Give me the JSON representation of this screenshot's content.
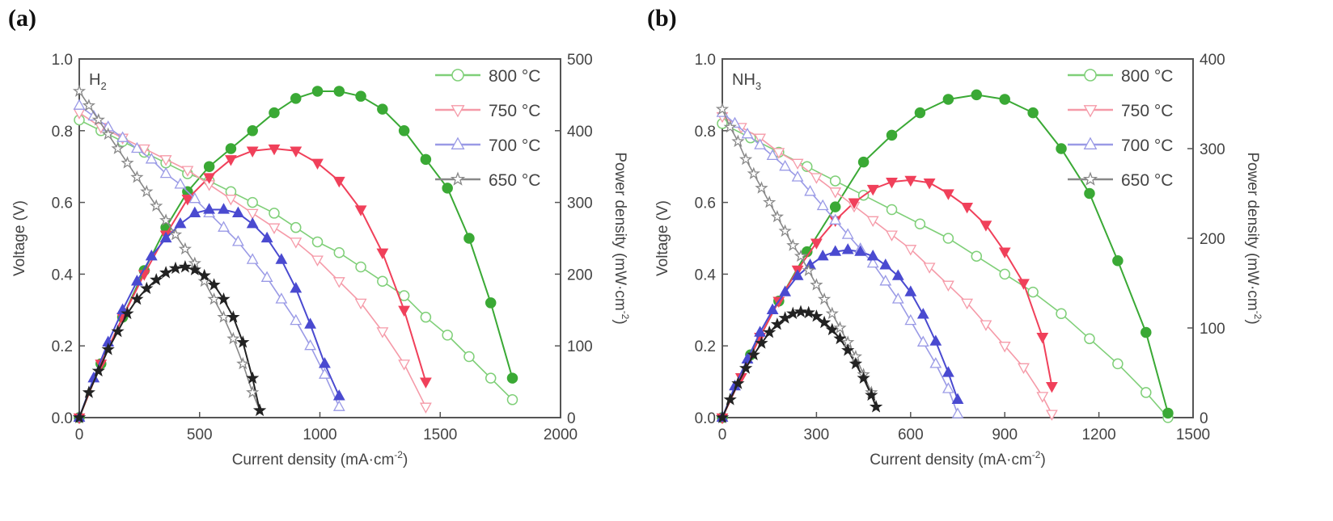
{
  "colors": {
    "800": "#3aa935",
    "750": "#f0405a",
    "700": "#4a4ad0",
    "650": "#222222",
    "800_light": "#7fcf78",
    "750_light": "#f59aa8",
    "700_light": "#9a9ae6",
    "650_light": "#888888"
  },
  "chart_data": [
    {
      "panel_label": "(a)",
      "type": "line",
      "gas_label": "H",
      "gas_sub": "2",
      "xlabel": "Current density (mA·cm",
      "xlabel_sup": "-2",
      "xlabel_end": ")",
      "ylabel": "Voltage (V)",
      "y2label": "Power density (mW·cm",
      "y2label_sup": "-2",
      "y2label_end": ")",
      "xlim": [
        0,
        2000
      ],
      "ylim": [
        0,
        1.0
      ],
      "y2lim": [
        0,
        500
      ],
      "xticks": [
        "0",
        "500",
        "1000",
        "1500",
        "2000"
      ],
      "yticks": [
        "0.0",
        "0.2",
        "0.4",
        "0.6",
        "0.8",
        "1.0"
      ],
      "y2ticks": [
        "0",
        "100",
        "200",
        "300",
        "400",
        "500"
      ],
      "legend_position": "top-right",
      "series": [
        {
          "name": "800 °C",
          "key": "800",
          "marker": "circle",
          "x": [
            0,
            90,
            180,
            270,
            360,
            450,
            540,
            630,
            720,
            810,
            900,
            990,
            1080,
            1170,
            1260,
            1350,
            1440,
            1530,
            1620,
            1710,
            1800
          ],
          "voltage": [
            0.83,
            0.8,
            0.77,
            0.74,
            0.71,
            0.68,
            0.66,
            0.63,
            0.6,
            0.57,
            0.53,
            0.49,
            0.46,
            0.42,
            0.38,
            0.34,
            0.28,
            0.23,
            0.17,
            0.11,
            0.05
          ],
          "power": [
            0,
            75,
            140,
            205,
            265,
            315,
            350,
            375,
            400,
            425,
            445,
            455,
            455,
            448,
            430,
            400,
            360,
            320,
            250,
            160,
            55
          ]
        },
        {
          "name": "750 °C",
          "key": "750",
          "marker": "triangle-down",
          "x": [
            0,
            90,
            180,
            270,
            360,
            450,
            540,
            630,
            720,
            810,
            900,
            990,
            1080,
            1170,
            1260,
            1350,
            1440
          ],
          "voltage": [
            0.85,
            0.81,
            0.78,
            0.75,
            0.72,
            0.69,
            0.65,
            0.61,
            0.57,
            0.53,
            0.49,
            0.44,
            0.38,
            0.32,
            0.24,
            0.15,
            0.03
          ],
          "power": [
            0,
            75,
            140,
            200,
            255,
            305,
            335,
            360,
            372,
            375,
            372,
            355,
            330,
            290,
            230,
            150,
            50
          ]
        },
        {
          "name": "700 °C",
          "key": "700",
          "marker": "triangle-up",
          "x": [
            0,
            60,
            120,
            180,
            240,
            300,
            360,
            420,
            480,
            540,
            600,
            660,
            720,
            780,
            840,
            900,
            960,
            1020,
            1080
          ],
          "voltage": [
            0.87,
            0.84,
            0.81,
            0.78,
            0.75,
            0.72,
            0.68,
            0.65,
            0.61,
            0.57,
            0.53,
            0.49,
            0.44,
            0.39,
            0.33,
            0.27,
            0.2,
            0.12,
            0.03
          ],
          "power": [
            0,
            55,
            105,
            150,
            190,
            225,
            250,
            270,
            285,
            290,
            290,
            285,
            270,
            250,
            220,
            180,
            130,
            75,
            30
          ]
        },
        {
          "name": "650 °C",
          "key": "650",
          "marker": "star",
          "x": [
            0,
            40,
            80,
            120,
            160,
            200,
            240,
            280,
            320,
            360,
            400,
            440,
            480,
            520,
            560,
            600,
            640,
            680,
            720,
            750
          ],
          "voltage": [
            0.91,
            0.87,
            0.83,
            0.79,
            0.75,
            0.71,
            0.67,
            0.63,
            0.59,
            0.55,
            0.51,
            0.47,
            0.43,
            0.38,
            0.33,
            0.28,
            0.22,
            0.15,
            0.07,
            0.02
          ],
          "power": [
            0,
            35,
            65,
            95,
            120,
            145,
            165,
            180,
            192,
            202,
            208,
            210,
            206,
            198,
            185,
            165,
            140,
            105,
            55,
            10
          ]
        }
      ]
    },
    {
      "panel_label": "(b)",
      "type": "line",
      "gas_label": "NH",
      "gas_sub": "3",
      "xlabel": "Current density (mA·cm",
      "xlabel_sup": "-2",
      "xlabel_end": ")",
      "ylabel": "Voltage (V)",
      "y2label": "Power density (mW·cm",
      "y2label_sup": "-2",
      "y2label_end": ")",
      "xlim": [
        0,
        1500
      ],
      "ylim": [
        0,
        1.0
      ],
      "y2lim": [
        0,
        400
      ],
      "xticks": [
        "0",
        "300",
        "600",
        "900",
        "1200",
        "1500"
      ],
      "yticks": [
        "0.0",
        "0.2",
        "0.4",
        "0.6",
        "0.8",
        "1.0"
      ],
      "y2ticks": [
        "0",
        "100",
        "200",
        "300",
        "400"
      ],
      "legend_position": "top-right",
      "series": [
        {
          "name": "800 °C",
          "key": "800",
          "marker": "circle",
          "x": [
            0,
            90,
            180,
            270,
            360,
            450,
            540,
            630,
            720,
            810,
            900,
            990,
            1080,
            1170,
            1260,
            1350,
            1420
          ],
          "voltage": [
            0.82,
            0.78,
            0.74,
            0.7,
            0.66,
            0.62,
            0.58,
            0.54,
            0.5,
            0.45,
            0.4,
            0.35,
            0.29,
            0.22,
            0.15,
            0.07,
            0.0
          ],
          "power": [
            0,
            70,
            130,
            185,
            235,
            285,
            315,
            340,
            355,
            360,
            355,
            340,
            300,
            250,
            175,
            95,
            5
          ]
        },
        {
          "name": "750 °C",
          "key": "750",
          "marker": "triangle-down",
          "x": [
            0,
            60,
            120,
            180,
            240,
            300,
            360,
            420,
            480,
            540,
            600,
            660,
            720,
            780,
            840,
            900,
            960,
            1020,
            1050
          ],
          "voltage": [
            0.84,
            0.81,
            0.78,
            0.74,
            0.71,
            0.67,
            0.63,
            0.59,
            0.55,
            0.51,
            0.47,
            0.42,
            0.37,
            0.32,
            0.26,
            0.2,
            0.14,
            0.06,
            0.01
          ],
          "power": [
            0,
            45,
            90,
            130,
            165,
            195,
            220,
            240,
            255,
            263,
            265,
            262,
            250,
            235,
            215,
            185,
            150,
            90,
            35
          ]
        },
        {
          "name": "700 °C",
          "key": "700",
          "marker": "triangle-up",
          "x": [
            0,
            40,
            80,
            120,
            160,
            200,
            240,
            280,
            320,
            360,
            400,
            440,
            480,
            520,
            560,
            600,
            640,
            680,
            720,
            750
          ],
          "voltage": [
            0.85,
            0.82,
            0.79,
            0.76,
            0.73,
            0.7,
            0.67,
            0.63,
            0.59,
            0.55,
            0.51,
            0.47,
            0.43,
            0.38,
            0.33,
            0.27,
            0.21,
            0.15,
            0.08,
            0.01
          ],
          "power": [
            0,
            35,
            65,
            95,
            120,
            140,
            158,
            170,
            180,
            185,
            187,
            185,
            180,
            170,
            158,
            140,
            115,
            85,
            50,
            20
          ]
        },
        {
          "name": "650 °C",
          "key": "650",
          "marker": "star",
          "x": [
            0,
            25,
            50,
            75,
            100,
            125,
            150,
            175,
            200,
            225,
            250,
            275,
            300,
            325,
            350,
            375,
            400,
            425,
            450,
            475,
            490
          ],
          "voltage": [
            0.86,
            0.81,
            0.77,
            0.72,
            0.68,
            0.64,
            0.6,
            0.56,
            0.52,
            0.48,
            0.45,
            0.41,
            0.37,
            0.33,
            0.29,
            0.25,
            0.21,
            0.17,
            0.12,
            0.07,
            0.03
          ],
          "power": [
            0,
            20,
            38,
            55,
            70,
            83,
            95,
            104,
            111,
            116,
            118,
            117,
            113,
            106,
            98,
            88,
            75,
            60,
            44,
            25,
            12
          ]
        }
      ]
    }
  ]
}
